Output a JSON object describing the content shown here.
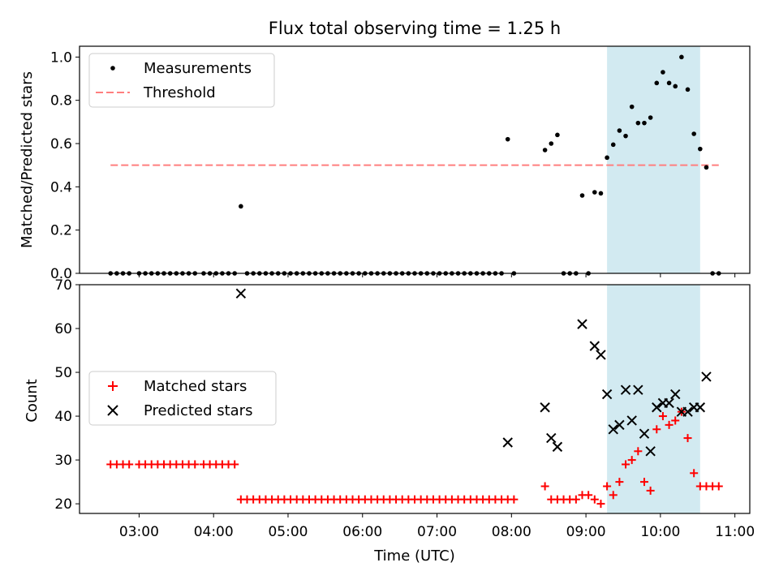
{
  "figure": {
    "title": "Flux total observing time = 1.25 h"
  },
  "chart_data": [
    {
      "type": "scatter",
      "title": "Flux total observing time = 1.25 h",
      "xlabel": "",
      "ylabel": "Matched/Predicted stars",
      "xlim": [
        "02:12",
        "11:12"
      ],
      "ylim": [
        0,
        1.05
      ],
      "yticks": [
        0.0,
        0.2,
        0.4,
        0.6,
        0.8,
        1.0
      ],
      "yticklabels": [
        "0.0",
        "0.2",
        "0.4",
        "0.6",
        "0.8",
        "1.0"
      ],
      "legend": {
        "placement": "top-left",
        "entries": [
          "Measurements",
          "Threshold"
        ]
      },
      "shaded_region": {
        "from": "09:17",
        "to": "10:32",
        "color": "#add8e6"
      },
      "series": [
        {
          "name": "Measurements",
          "marker": "dot",
          "color": "#000000",
          "points": [
            [
              "02:37",
              0
            ],
            [
              "02:42",
              0
            ],
            [
              "02:47",
              0
            ],
            [
              "02:52",
              0
            ],
            [
              "03:00",
              0
            ],
            [
              "03:05",
              0
            ],
            [
              "03:10",
              0
            ],
            [
              "03:15",
              0
            ],
            [
              "03:20",
              0
            ],
            [
              "03:25",
              0
            ],
            [
              "03:30",
              0
            ],
            [
              "03:35",
              0
            ],
            [
              "03:40",
              0
            ],
            [
              "03:45",
              0
            ],
            [
              "03:52",
              0
            ],
            [
              "03:57",
              0
            ],
            [
              "04:02",
              0
            ],
            [
              "04:07",
              0
            ],
            [
              "04:12",
              0
            ],
            [
              "04:17",
              0
            ],
            [
              "04:22",
              0.31
            ],
            [
              "04:27",
              0
            ],
            [
              "04:32",
              0
            ],
            [
              "04:37",
              0
            ],
            [
              "04:42",
              0
            ],
            [
              "04:47",
              0
            ],
            [
              "04:52",
              0
            ],
            [
              "04:57",
              0
            ],
            [
              "05:02",
              0
            ],
            [
              "05:07",
              0
            ],
            [
              "05:12",
              0
            ],
            [
              "05:17",
              0
            ],
            [
              "05:22",
              0
            ],
            [
              "05:27",
              0
            ],
            [
              "05:32",
              0
            ],
            [
              "05:37",
              0
            ],
            [
              "05:42",
              0
            ],
            [
              "05:47",
              0
            ],
            [
              "05:52",
              0
            ],
            [
              "05:57",
              0
            ],
            [
              "06:02",
              0
            ],
            [
              "06:07",
              0
            ],
            [
              "06:12",
              0
            ],
            [
              "06:17",
              0
            ],
            [
              "06:22",
              0
            ],
            [
              "06:27",
              0
            ],
            [
              "06:32",
              0
            ],
            [
              "06:37",
              0
            ],
            [
              "06:42",
              0
            ],
            [
              "06:47",
              0
            ],
            [
              "06:52",
              0
            ],
            [
              "06:57",
              0
            ],
            [
              "07:02",
              0
            ],
            [
              "07:07",
              0
            ],
            [
              "07:12",
              0
            ],
            [
              "07:17",
              0
            ],
            [
              "07:22",
              0
            ],
            [
              "07:27",
              0
            ],
            [
              "07:32",
              0
            ],
            [
              "07:37",
              0
            ],
            [
              "07:42",
              0
            ],
            [
              "07:47",
              0
            ],
            [
              "07:52",
              0
            ],
            [
              "07:57",
              0.62
            ],
            [
              "08:02",
              0
            ],
            [
              "08:27",
              0.57
            ],
            [
              "08:32",
              0.6
            ],
            [
              "08:37",
              0.64
            ],
            [
              "08:42",
              0
            ],
            [
              "08:47",
              0
            ],
            [
              "08:52",
              0
            ],
            [
              "08:57",
              0.36
            ],
            [
              "09:02",
              0
            ],
            [
              "09:07",
              0.375
            ],
            [
              "09:12",
              0.37
            ],
            [
              "09:17",
              0.535
            ],
            [
              "09:22",
              0.595
            ],
            [
              "09:27",
              0.66
            ],
            [
              "09:32",
              0.635
            ],
            [
              "09:37",
              0.77
            ],
            [
              "09:42",
              0.695
            ],
            [
              "09:47",
              0.695
            ],
            [
              "09:52",
              0.72
            ],
            [
              "09:57",
              0.88
            ],
            [
              "10:02",
              0.93
            ],
            [
              "10:07",
              0.88
            ],
            [
              "10:12",
              0.865
            ],
            [
              "10:17",
              1.0
            ],
            [
              "10:22",
              0.85
            ],
            [
              "10:27",
              0.645
            ],
            [
              "10:32",
              0.575
            ],
            [
              "10:37",
              0.49
            ],
            [
              "10:42",
              0
            ],
            [
              "10:47",
              0
            ]
          ]
        },
        {
          "name": "Threshold",
          "marker": "dashed-line",
          "color": "#ff7f7f",
          "points": [
            [
              "02:37",
              0.5
            ],
            [
              "10:47",
              0.5
            ]
          ]
        }
      ]
    },
    {
      "type": "scatter",
      "title": "",
      "xlabel": "Time (UTC)",
      "ylabel": "Count",
      "xlim": [
        "02:12",
        "11:12"
      ],
      "xticks": [
        "03:00",
        "04:00",
        "05:00",
        "06:00",
        "07:00",
        "08:00",
        "09:00",
        "10:00",
        "11:00"
      ],
      "ylim": [
        17.8,
        70
      ],
      "yticks": [
        20,
        30,
        40,
        50,
        60,
        70
      ],
      "legend": {
        "placement": "center-left",
        "entries": [
          "Matched stars",
          "Predicted stars"
        ]
      },
      "shaded_region": {
        "from": "09:17",
        "to": "10:32",
        "color": "#add8e6"
      },
      "series": [
        {
          "name": "Matched stars",
          "marker": "plus",
          "color": "#ff0000",
          "points": [
            [
              "02:37",
              29
            ],
            [
              "02:42",
              29
            ],
            [
              "02:47",
              29
            ],
            [
              "02:52",
              29
            ],
            [
              "03:00",
              29
            ],
            [
              "03:05",
              29
            ],
            [
              "03:10",
              29
            ],
            [
              "03:15",
              29
            ],
            [
              "03:20",
              29
            ],
            [
              "03:25",
              29
            ],
            [
              "03:30",
              29
            ],
            [
              "03:35",
              29
            ],
            [
              "03:40",
              29
            ],
            [
              "03:45",
              29
            ],
            [
              "03:52",
              29
            ],
            [
              "03:57",
              29
            ],
            [
              "04:02",
              29
            ],
            [
              "04:07",
              29
            ],
            [
              "04:12",
              29
            ],
            [
              "04:17",
              29
            ],
            [
              "04:22",
              21
            ],
            [
              "04:27",
              21
            ],
            [
              "04:32",
              21
            ],
            [
              "04:37",
              21
            ],
            [
              "04:42",
              21
            ],
            [
              "04:47",
              21
            ],
            [
              "04:52",
              21
            ],
            [
              "04:57",
              21
            ],
            [
              "05:02",
              21
            ],
            [
              "05:07",
              21
            ],
            [
              "05:12",
              21
            ],
            [
              "05:17",
              21
            ],
            [
              "05:22",
              21
            ],
            [
              "05:27",
              21
            ],
            [
              "05:32",
              21
            ],
            [
              "05:37",
              21
            ],
            [
              "05:42",
              21
            ],
            [
              "05:47",
              21
            ],
            [
              "05:52",
              21
            ],
            [
              "05:57",
              21
            ],
            [
              "06:02",
              21
            ],
            [
              "06:07",
              21
            ],
            [
              "06:12",
              21
            ],
            [
              "06:17",
              21
            ],
            [
              "06:22",
              21
            ],
            [
              "06:27",
              21
            ],
            [
              "06:32",
              21
            ],
            [
              "06:37",
              21
            ],
            [
              "06:42",
              21
            ],
            [
              "06:47",
              21
            ],
            [
              "06:52",
              21
            ],
            [
              "06:57",
              21
            ],
            [
              "07:02",
              21
            ],
            [
              "07:07",
              21
            ],
            [
              "07:12",
              21
            ],
            [
              "07:17",
              21
            ],
            [
              "07:22",
              21
            ],
            [
              "07:27",
              21
            ],
            [
              "07:32",
              21
            ],
            [
              "07:37",
              21
            ],
            [
              "07:42",
              21
            ],
            [
              "07:47",
              21
            ],
            [
              "07:52",
              21
            ],
            [
              "07:57",
              21
            ],
            [
              "08:02",
              21
            ],
            [
              "08:27",
              24
            ],
            [
              "08:32",
              21
            ],
            [
              "08:37",
              21
            ],
            [
              "08:42",
              21
            ],
            [
              "08:47",
              21
            ],
            [
              "08:52",
              21
            ],
            [
              "08:57",
              22
            ],
            [
              "09:02",
              22
            ],
            [
              "09:07",
              21
            ],
            [
              "09:12",
              20
            ],
            [
              "09:17",
              24
            ],
            [
              "09:22",
              22
            ],
            [
              "09:27",
              25
            ],
            [
              "09:32",
              29
            ],
            [
              "09:37",
              30
            ],
            [
              "09:42",
              32
            ],
            [
              "09:47",
              25
            ],
            [
              "09:52",
              23
            ],
            [
              "09:57",
              37
            ],
            [
              "10:02",
              40
            ],
            [
              "10:07",
              38
            ],
            [
              "10:12",
              39
            ],
            [
              "10:17",
              41
            ],
            [
              "10:22",
              35
            ],
            [
              "10:27",
              27
            ],
            [
              "10:32",
              24
            ],
            [
              "10:37",
              24
            ],
            [
              "10:42",
              24
            ],
            [
              "10:47",
              24
            ]
          ]
        },
        {
          "name": "Predicted stars",
          "marker": "x",
          "color": "#000000",
          "points": [
            [
              "04:22",
              68
            ],
            [
              "07:57",
              34
            ],
            [
              "08:27",
              42
            ],
            [
              "08:32",
              35
            ],
            [
              "08:37",
              33
            ],
            [
              "08:57",
              61
            ],
            [
              "09:07",
              56
            ],
            [
              "09:12",
              54
            ],
            [
              "09:17",
              45
            ],
            [
              "09:22",
              37
            ],
            [
              "09:27",
              38
            ],
            [
              "09:32",
              46
            ],
            [
              "09:37",
              39
            ],
            [
              "09:42",
              46
            ],
            [
              "09:47",
              36
            ],
            [
              "09:52",
              32
            ],
            [
              "09:57",
              42
            ],
            [
              "10:02",
              43
            ],
            [
              "10:07",
              43
            ],
            [
              "10:12",
              45
            ],
            [
              "10:17",
              41
            ],
            [
              "10:22",
              41
            ],
            [
              "10:27",
              42
            ],
            [
              "10:32",
              42
            ],
            [
              "10:37",
              49
            ]
          ]
        }
      ]
    }
  ]
}
